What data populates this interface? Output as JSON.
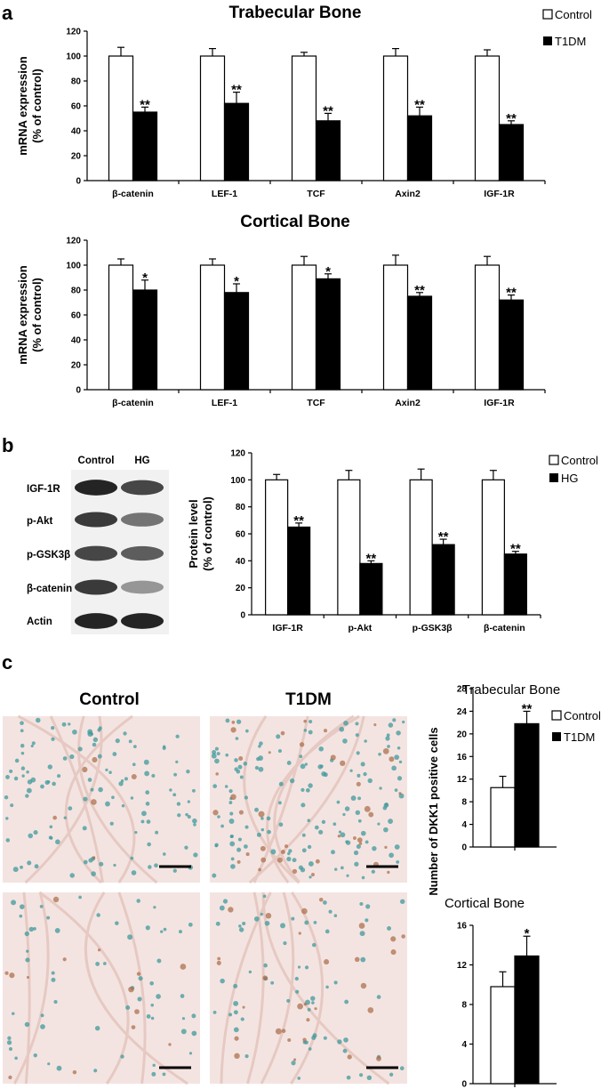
{
  "panels": {
    "a": "a",
    "b": "b",
    "c": "c"
  },
  "chart_data": [
    {
      "id": "trab",
      "type": "bar",
      "title": "Trabecular Bone",
      "ylabel": [
        "mRNA expression",
        "(% of control)"
      ],
      "categories": [
        "β-catenin",
        "LEF-1",
        "TCF",
        "Axin2",
        "IGF-1R"
      ],
      "series": [
        {
          "name": "Control",
          "values": [
            100,
            100,
            100,
            100,
            100
          ],
          "errors": [
            7,
            6,
            3,
            6,
            5
          ]
        },
        {
          "name": "T1DM",
          "values": [
            55,
            62,
            48,
            52,
            45
          ],
          "errors": [
            4,
            9,
            6,
            7,
            3
          ]
        }
      ],
      "significance": [
        "**",
        "**",
        "**",
        "**",
        "**"
      ],
      "ylim": [
        0,
        120
      ],
      "yticks": [
        "0",
        "20",
        "40",
        "60",
        "80",
        "100",
        "120"
      ],
      "legend": "top-right",
      "grid": false
    },
    {
      "id": "cort",
      "type": "bar",
      "title": "Cortical Bone",
      "ylabel": [
        "mRNA expression",
        "(% of control)"
      ],
      "categories": [
        "β-catenin",
        "LEF-1",
        "TCF",
        "Axin2",
        "IGF-1R"
      ],
      "series": [
        {
          "name": "Control",
          "values": [
            100,
            100,
            100,
            100,
            100
          ],
          "errors": [
            5,
            5,
            7,
            8,
            7
          ]
        },
        {
          "name": "T1DM",
          "values": [
            80,
            78,
            89,
            75,
            72
          ],
          "errors": [
            8,
            7,
            4,
            3,
            4
          ]
        }
      ],
      "significance": [
        "*",
        "*",
        "*",
        "**",
        "**"
      ],
      "ylim": [
        0,
        120
      ],
      "yticks": [
        "0",
        "20",
        "40",
        "60",
        "80",
        "100",
        "120"
      ],
      "grid": false
    },
    {
      "id": "prot",
      "type": "bar",
      "ylabel": [
        "Protein level",
        "(% of control)"
      ],
      "categories": [
        "IGF-1R",
        "p-Akt",
        "p-GSK3β",
        "β-catenin"
      ],
      "series": [
        {
          "name": "Control",
          "values": [
            100,
            100,
            100,
            100
          ],
          "errors": [
            4,
            7,
            8,
            7
          ]
        },
        {
          "name": "HG",
          "values": [
            65,
            38,
            52,
            45
          ],
          "errors": [
            3,
            2,
            4,
            2
          ]
        }
      ],
      "significance": [
        "**",
        "**",
        "**",
        "**"
      ],
      "ylim": [
        0,
        120
      ],
      "yticks": [
        "0",
        "20",
        "40",
        "60",
        "80",
        "100",
        "120"
      ],
      "legend": "top-right",
      "grid": false
    },
    {
      "id": "dkk-trab",
      "type": "bar",
      "title": "Trabecular  Bone",
      "series": [
        {
          "name": "Control",
          "values": [
            10.5
          ],
          "errors": [
            2
          ]
        },
        {
          "name": "T1DM",
          "values": [
            21.8
          ],
          "errors": [
            2.2
          ]
        }
      ],
      "significance": [
        "**"
      ],
      "ylim": [
        0,
        28
      ],
      "yticks": [
        "0",
        "4",
        "8",
        "12",
        "16",
        "20",
        "24",
        "28"
      ],
      "legend": "top-right",
      "grid": false
    },
    {
      "id": "dkk-cort",
      "type": "bar",
      "title": "Cortical  Bone",
      "series": [
        {
          "name": "Control",
          "values": [
            9.8
          ],
          "errors": [
            1.5
          ]
        },
        {
          "name": "T1DM",
          "values": [
            12.9
          ],
          "errors": [
            2
          ]
        }
      ],
      "significance": [
        "*"
      ],
      "ylim": [
        0,
        16
      ],
      "yticks": [
        "0",
        "4",
        "8",
        "12",
        "16"
      ],
      "grid": false
    }
  ],
  "dkk_ylabel": "Number of DKK1 positive cells",
  "legends": {
    "a": [
      "Control",
      "T1DM"
    ],
    "b": [
      "Control",
      "HG"
    ],
    "c": [
      "Control",
      "T1DM"
    ]
  },
  "blot": {
    "columns": [
      "Control",
      "HG"
    ],
    "rows": [
      "IGF-1R",
      "p-Akt",
      "p-GSK3β",
      "β-catenin",
      "Actin"
    ],
    "intensity": [
      [
        0.95,
        0.8
      ],
      [
        0.85,
        0.6
      ],
      [
        0.8,
        0.7
      ],
      [
        0.85,
        0.45
      ],
      [
        0.95,
        0.95
      ]
    ]
  },
  "micrographs": {
    "headers": [
      "Control",
      "T1DM"
    ]
  },
  "colors": {
    "control": "#ffffff",
    "disease": "#000000",
    "tissue_pink": "#f4e4e1",
    "stain_teal": "#3f9a9c",
    "stain_brown": "#a86a45"
  }
}
